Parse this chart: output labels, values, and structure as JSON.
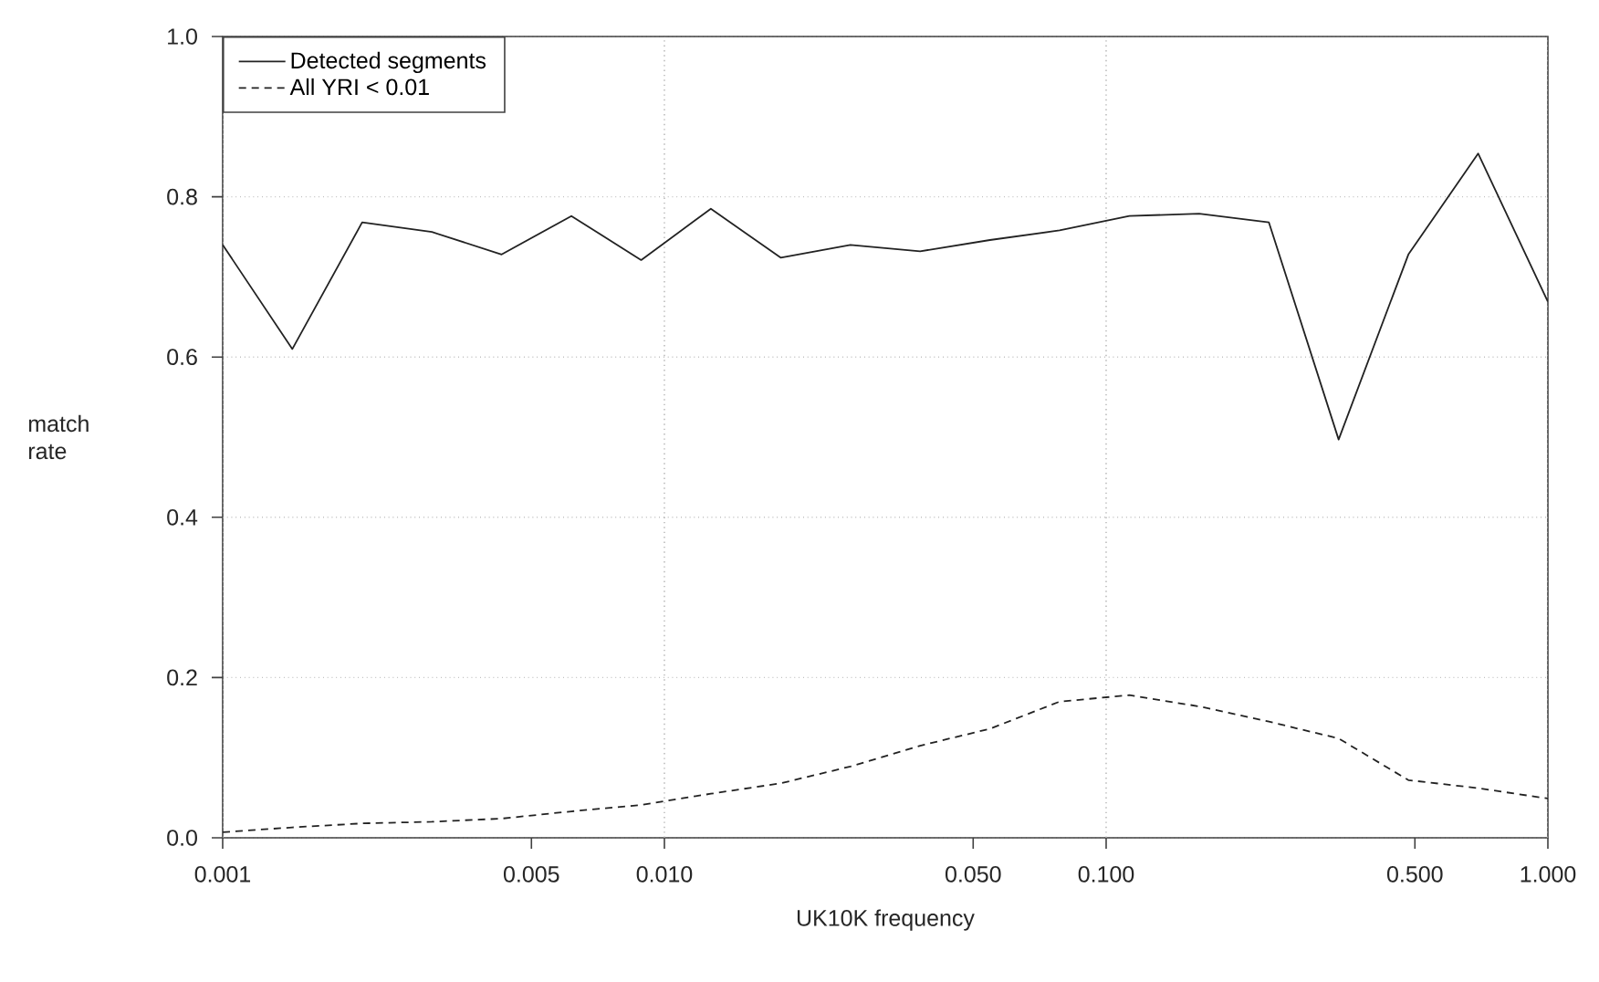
{
  "chart_data": {
    "type": "line",
    "xlabel": "UK10K frequency",
    "ylabel": "match rate",
    "log": "x",
    "grid": true,
    "legend": "top left",
    "marker": "none",
    "x": [
      0.001,
      0.001438,
      0.002069,
      0.002976,
      0.004281,
      0.006158,
      0.008859,
      0.01274,
      0.01833,
      0.02637,
      0.03793,
      0.05456,
      0.07848,
      0.1129,
      0.1624,
      0.2336,
      0.336,
      0.4833,
      0.6952,
      1.0
    ],
    "series": [
      {
        "name": "Detected segments",
        "color": "#222222",
        "line_style": "solid",
        "values": [
          0.74,
          0.61,
          0.768,
          0.756,
          0.728,
          0.776,
          0.721,
          0.785,
          0.724,
          0.74,
          0.732,
          0.746,
          0.758,
          0.776,
          0.779,
          0.768,
          0.497,
          0.728,
          0.854,
          0.669
        ]
      },
      {
        "name": "All YRI < 0.01",
        "color": "#222222",
        "line_style": "dashed",
        "values": [
          0.007,
          0.013,
          0.018,
          0.02,
          0.024,
          0.033,
          0.041,
          0.055,
          0.068,
          0.089,
          0.115,
          0.136,
          0.17,
          0.178,
          0.164,
          0.145,
          0.124,
          0.072,
          0.062,
          0.049
        ]
      }
    ],
    "xlim": [
      0.001,
      1.0
    ],
    "ylim": [
      0.0,
      1.0
    ],
    "xticks": [
      {
        "value": 0.001,
        "label": "0.001"
      },
      {
        "value": 0.005,
        "label": "0.005"
      },
      {
        "value": 0.01,
        "label": "0.010"
      },
      {
        "value": 0.05,
        "label": "0.050"
      },
      {
        "value": 0.1,
        "label": "0.100"
      },
      {
        "value": 0.5,
        "label": "0.500"
      },
      {
        "value": 1.0,
        "label": "1.000"
      }
    ],
    "yticks": [
      {
        "value": 0.0,
        "label": "0.0"
      },
      {
        "value": 0.2,
        "label": "0.2"
      },
      {
        "value": 0.4,
        "label": "0.4"
      },
      {
        "value": 0.6,
        "label": "0.6"
      },
      {
        "value": 0.8,
        "label": "0.8"
      },
      {
        "value": 1.0,
        "label": "1.0"
      }
    ]
  }
}
